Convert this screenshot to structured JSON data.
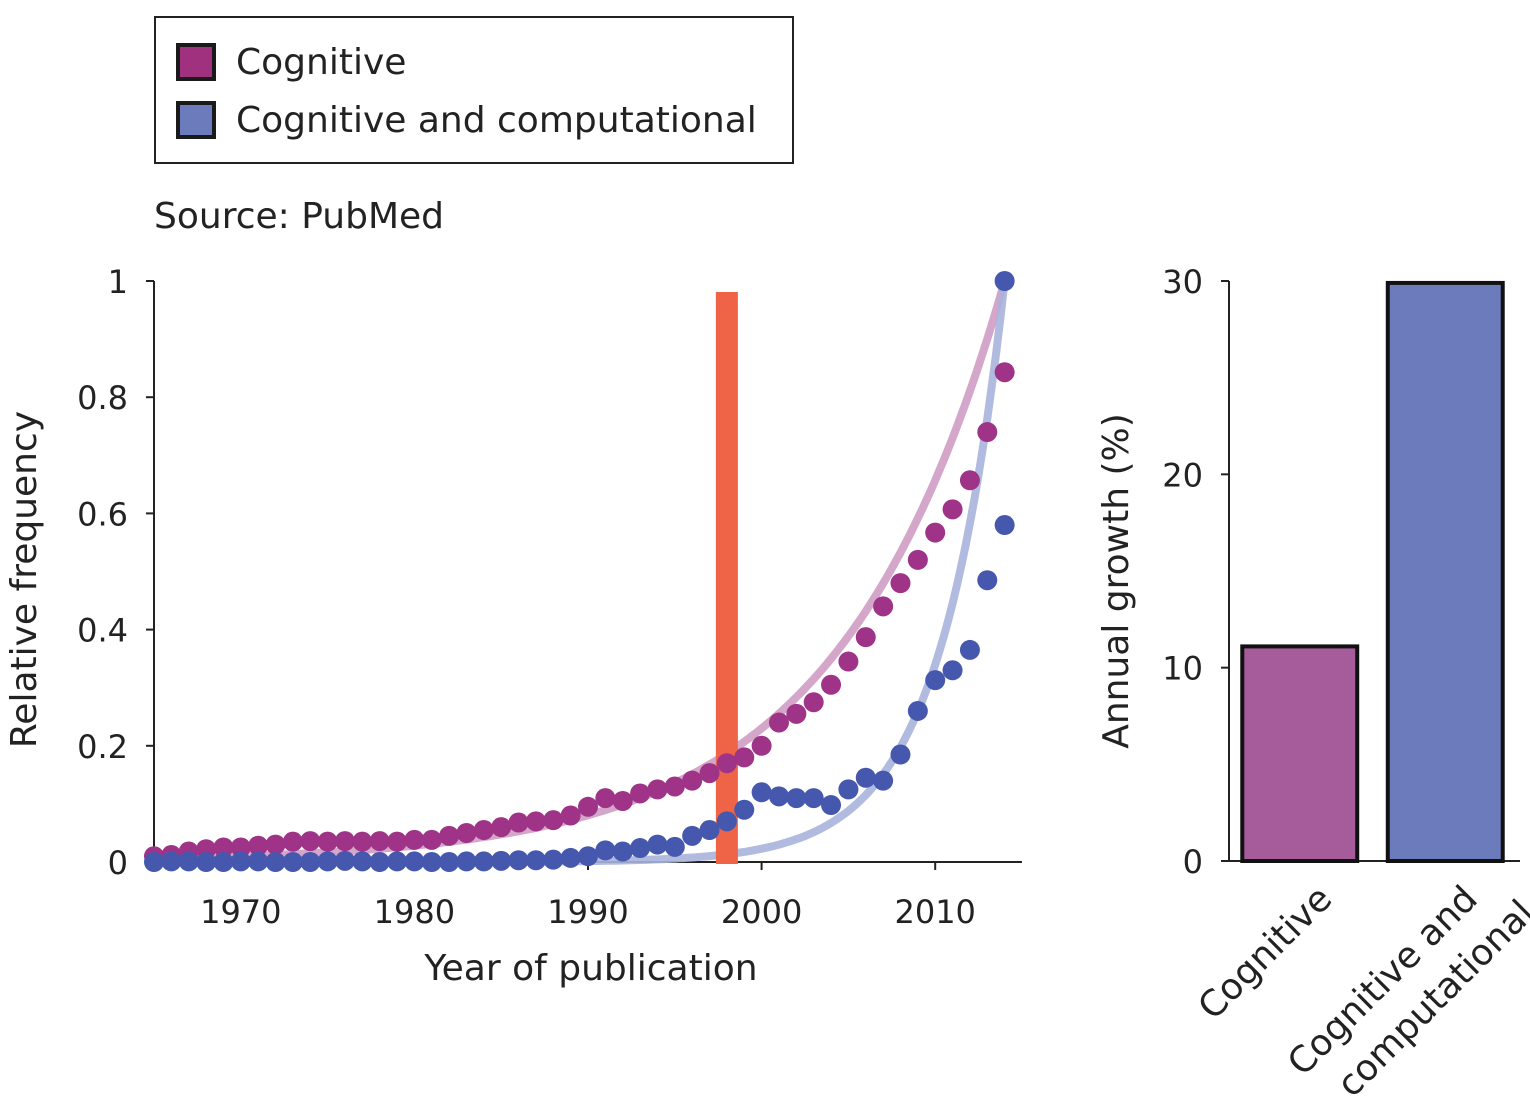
{
  "legend": {
    "items": [
      {
        "label": "Cognitive",
        "color": "#a0317f"
      },
      {
        "label": "Cognitive and computational",
        "color": "#6b7bbb"
      }
    ]
  },
  "source_text": "Source: PubMed",
  "chart_data": [
    {
      "type": "scatter",
      "xlabel": "Year of publication",
      "ylabel": "Relative frequency",
      "xlim": [
        1965,
        2015
      ],
      "ylim": [
        0,
        1
      ],
      "xticks": [
        1970,
        1980,
        1990,
        2000,
        2010
      ],
      "yticks": [
        0,
        0.2,
        0.4,
        0.6,
        0.8,
        1
      ],
      "ytick_labels": [
        "0",
        "0.2",
        "0.4",
        "0.6",
        "0.8",
        "1"
      ],
      "grid": false,
      "marker_line_year": 1998,
      "marker_line_color": "#ef6446",
      "x": [
        1965,
        1966,
        1967,
        1968,
        1969,
        1970,
        1971,
        1972,
        1973,
        1974,
        1975,
        1976,
        1977,
        1978,
        1979,
        1980,
        1981,
        1982,
        1983,
        1984,
        1985,
        1986,
        1987,
        1988,
        1989,
        1990,
        1991,
        1992,
        1993,
        1994,
        1995,
        1996,
        1997,
        1998,
        1999,
        2000,
        2001,
        2002,
        2003,
        2004,
        2005,
        2006,
        2007,
        2008,
        2009,
        2010,
        2011,
        2012,
        2013,
        2014
      ],
      "series": [
        {
          "name": "Cognitive",
          "color": "#9e3387",
          "fit_color": "#cf9cc4",
          "values": [
            0.01,
            0.012,
            0.018,
            0.022,
            0.025,
            0.025,
            0.028,
            0.03,
            0.035,
            0.036,
            0.035,
            0.036,
            0.035,
            0.036,
            0.035,
            0.038,
            0.038,
            0.045,
            0.05,
            0.055,
            0.06,
            0.068,
            0.07,
            0.072,
            0.08,
            0.095,
            0.11,
            0.105,
            0.118,
            0.125,
            0.13,
            0.14,
            0.153,
            0.17,
            0.18,
            0.2,
            0.24,
            0.255,
            0.275,
            0.305,
            0.345,
            0.387,
            0.44,
            0.48,
            0.52,
            0.567,
            0.607,
            0.657,
            0.74,
            0.843
          ],
          "fit_rate": 0.105
        },
        {
          "name": "Cognitive and computational",
          "color": "#4558ad",
          "fit_color": "#a9b4dc",
          "values": [
            0.0,
            0.001,
            0.001,
            0.0,
            0.0,
            0.001,
            0.001,
            0.0,
            0.0,
            0.0,
            0.001,
            0.002,
            0.001,
            0.0,
            0.001,
            0.001,
            0.0,
            0.0,
            0.001,
            0.001,
            0.002,
            0.003,
            0.003,
            0.004,
            0.007,
            0.01,
            0.02,
            0.018,
            0.024,
            0.03,
            0.026,
            0.045,
            0.055,
            0.07,
            0.09,
            0.12,
            0.113,
            0.11,
            0.11,
            0.098,
            0.125,
            0.145,
            0.14,
            0.185,
            0.26,
            0.313,
            0.33,
            0.365,
            0.485,
            0.58
          ],
          "fit_rate": 0.27
        }
      ],
      "last_point": {
        "x": 2014,
        "y": 1.0
      }
    },
    {
      "type": "bar",
      "categories": [
        "Cognitive",
        "Cognitive and computational"
      ],
      "category_display": [
        [
          "Cognitive"
        ],
        [
          "Cognitive and",
          "computational"
        ]
      ],
      "values": [
        11.1,
        29.9
      ],
      "colors": [
        "#a65b9a",
        "#6b7bbb"
      ],
      "ylabel": "Annual growth (%)",
      "ylim": [
        0,
        30
      ],
      "yticks": [
        0,
        10,
        20,
        30
      ]
    }
  ]
}
